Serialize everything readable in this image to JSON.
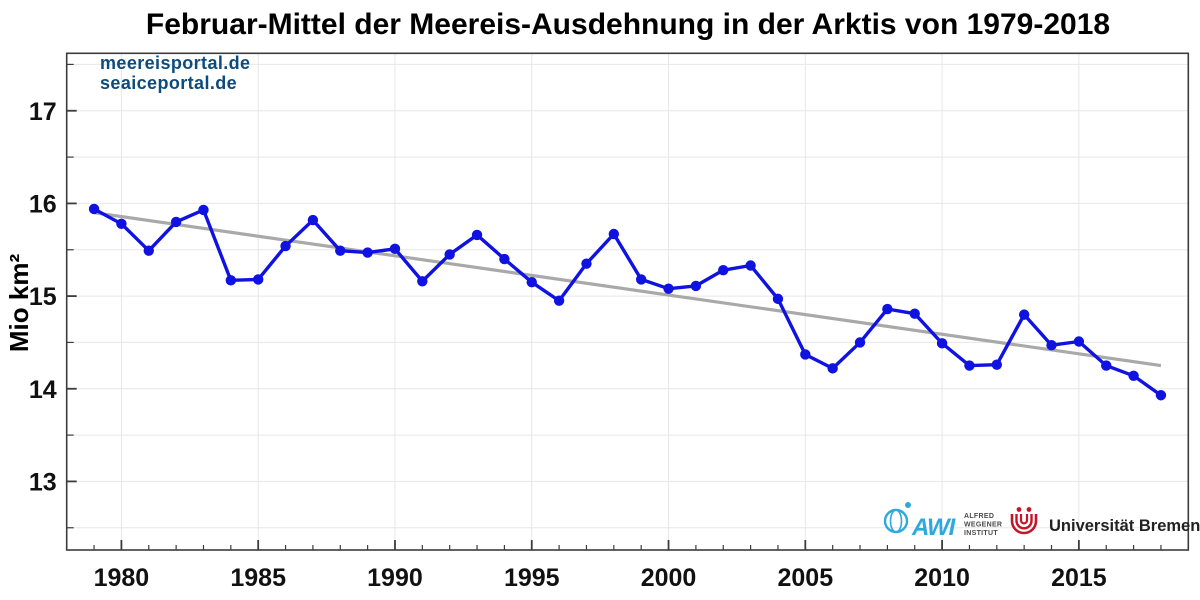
{
  "watermark": {
    "line1": "meereisportal.de",
    "line2": "seaiceportal.de",
    "color": "#0d4b7d"
  },
  "chart_data": {
    "type": "line",
    "title": "Februar-Mittel der Meereis-Ausdehnung in der Arktis von 1979-2018",
    "xlabel": "",
    "ylabel": "Mio km²",
    "series_name": "Februar-Mittel der Meereis-Ausdehnung",
    "x": [
      1979,
      1980,
      1981,
      1982,
      1983,
      1984,
      1985,
      1986,
      1987,
      1988,
      1989,
      1990,
      1991,
      1992,
      1993,
      1994,
      1995,
      1996,
      1997,
      1998,
      1999,
      2000,
      2001,
      2002,
      2003,
      2004,
      2005,
      2006,
      2007,
      2008,
      2009,
      2010,
      2011,
      2012,
      2013,
      2014,
      2015,
      2016,
      2017,
      2018
    ],
    "values": [
      15.94,
      15.78,
      15.49,
      15.8,
      15.93,
      15.17,
      15.18,
      15.54,
      15.82,
      15.49,
      15.47,
      15.51,
      15.16,
      15.45,
      15.66,
      15.4,
      15.15,
      14.95,
      15.35,
      15.67,
      15.18,
      15.08,
      15.11,
      15.28,
      15.33,
      14.97,
      14.37,
      14.22,
      14.5,
      14.86,
      14.81,
      14.49,
      14.25,
      14.26,
      14.8,
      14.47,
      14.51,
      14.25,
      14.14,
      13.93
    ],
    "trend": {
      "year_start": 1979,
      "value_start": 15.9,
      "year_end": 2018,
      "value_end": 14.25
    },
    "xlim": [
      1978,
      2019
    ],
    "ylim": [
      12.26,
      17.62
    ],
    "xticks_major": [
      1980,
      1985,
      1990,
      1995,
      2000,
      2005,
      2010,
      2015
    ],
    "xticks_minor_range": [
      1979,
      2018
    ],
    "yticks_major": [
      13,
      14,
      15,
      16,
      17
    ],
    "yticks_minor": [
      12.5,
      13.5,
      14.5,
      15.5,
      16.5,
      17.5
    ],
    "grid": true,
    "legend": "none",
    "line_color": "#0f12e0",
    "trend_color": "#a9a9a9",
    "grid_color": "#e7e7e7",
    "axis_color": "#3c3c3c",
    "tick_label_color": "#111111"
  },
  "logos": {
    "awi": {
      "mark": "AWI",
      "lines": [
        "ALFRED",
        "WEGENER",
        "INSTITUT"
      ],
      "color": "#2ea9dd"
    },
    "uni_bremen": {
      "label": "Universität Bremen",
      "color": "#c2172b"
    }
  }
}
